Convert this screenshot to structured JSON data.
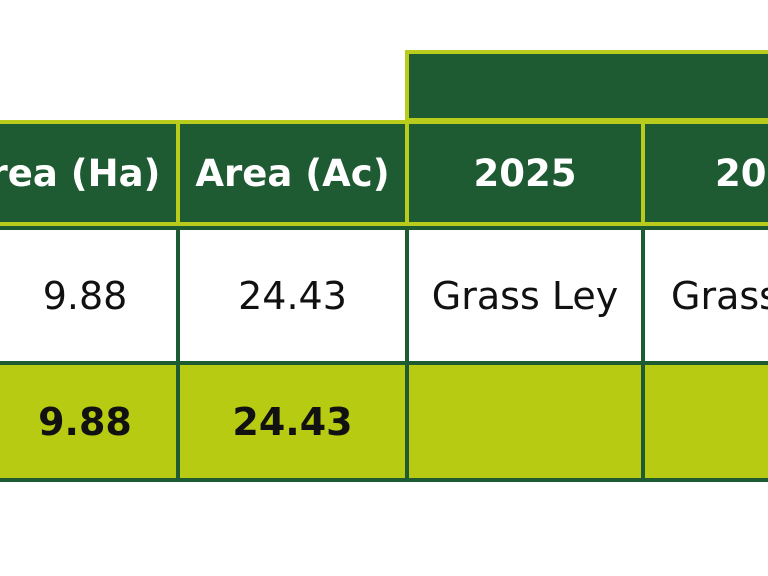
{
  "table": {
    "header_band": "",
    "headers": {
      "area_ha": "rea (Ha)",
      "area_ac": "Area (Ac)",
      "year_1": "2025",
      "year_2": "20"
    },
    "data_row": {
      "area_ha": "9.88",
      "area_ac": "24.43",
      "year_1": "Grass Ley",
      "year_2": "Grass"
    },
    "total_row": {
      "area_ha": "9.88",
      "area_ac": "24.43",
      "year_1": "",
      "year_2": ""
    },
    "colors": {
      "header_bg": "#1f5b32",
      "accent_border": "#b9cc1c",
      "total_bg": "#b7cb12"
    }
  }
}
